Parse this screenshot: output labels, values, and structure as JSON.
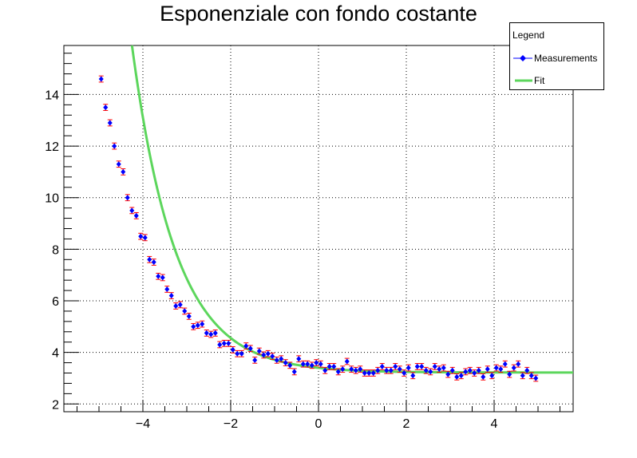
{
  "chart_data": {
    "type": "scatter",
    "title": "Esponenziale con fondo costante",
    "xlabel": "",
    "ylabel": "",
    "xlim": [
      -5.8,
      5.8
    ],
    "ylim": [
      1.7,
      15.9
    ],
    "x_ticks": [
      -4,
      -2,
      0,
      2,
      4
    ],
    "x_tick_labels": [
      "−4",
      "−2",
      "0",
      "2",
      "4"
    ],
    "y_ticks": [
      2,
      4,
      6,
      8,
      10,
      12,
      14
    ],
    "y_tick_labels": [
      "2",
      "4",
      "6",
      "8",
      "10",
      "12",
      "14"
    ],
    "grid": true,
    "legend": {
      "title": "Legend",
      "placement": "top-right",
      "entries": [
        "Measurements",
        "Fit"
      ]
    },
    "series": [
      {
        "name": "Measurements",
        "kind": "points_with_errors",
        "color": "#0000ff",
        "error_color": "#ff0000",
        "error": 0.12,
        "points": [
          [
            -4.95,
            14.6
          ],
          [
            -4.85,
            13.5
          ],
          [
            -4.75,
            12.9
          ],
          [
            -4.65,
            12.0
          ],
          [
            -4.55,
            11.3
          ],
          [
            -4.45,
            11.0
          ],
          [
            -4.35,
            10.0
          ],
          [
            -4.25,
            9.5
          ],
          [
            -4.15,
            9.3
          ],
          [
            -4.05,
            8.5
          ],
          [
            -3.95,
            8.45
          ],
          [
            -3.85,
            7.6
          ],
          [
            -3.75,
            7.5
          ],
          [
            -3.65,
            6.95
          ],
          [
            -3.55,
            6.9
          ],
          [
            -3.45,
            6.45
          ],
          [
            -3.35,
            6.2
          ],
          [
            -3.25,
            5.8
          ],
          [
            -3.15,
            5.85
          ],
          [
            -3.05,
            5.6
          ],
          [
            -2.95,
            5.4
          ],
          [
            -2.85,
            5.0
          ],
          [
            -2.75,
            5.05
          ],
          [
            -2.65,
            5.1
          ],
          [
            -2.55,
            4.75
          ],
          [
            -2.45,
            4.7
          ],
          [
            -2.35,
            4.75
          ],
          [
            -2.25,
            4.3
          ],
          [
            -2.15,
            4.35
          ],
          [
            -2.05,
            4.35
          ],
          [
            -1.95,
            4.1
          ],
          [
            -1.85,
            3.95
          ],
          [
            -1.75,
            3.95
          ],
          [
            -1.65,
            4.25
          ],
          [
            -1.55,
            4.15
          ],
          [
            -1.45,
            3.7
          ],
          [
            -1.35,
            4.05
          ],
          [
            -1.25,
            3.9
          ],
          [
            -1.15,
            3.95
          ],
          [
            -1.05,
            3.85
          ],
          [
            -0.95,
            3.7
          ],
          [
            -0.85,
            3.75
          ],
          [
            -0.75,
            3.6
          ],
          [
            -0.65,
            3.5
          ],
          [
            -0.55,
            3.25
          ],
          [
            -0.45,
            3.75
          ],
          [
            -0.35,
            3.55
          ],
          [
            -0.25,
            3.55
          ],
          [
            -0.15,
            3.5
          ],
          [
            -0.05,
            3.6
          ],
          [
            0.05,
            3.55
          ],
          [
            0.15,
            3.3
          ],
          [
            0.25,
            3.45
          ],
          [
            0.35,
            3.45
          ],
          [
            0.45,
            3.25
          ],
          [
            0.55,
            3.35
          ],
          [
            0.65,
            3.65
          ],
          [
            0.75,
            3.35
          ],
          [
            0.85,
            3.3
          ],
          [
            0.95,
            3.35
          ],
          [
            1.05,
            3.2
          ],
          [
            1.15,
            3.2
          ],
          [
            1.25,
            3.2
          ],
          [
            1.35,
            3.3
          ],
          [
            1.45,
            3.45
          ],
          [
            1.55,
            3.3
          ],
          [
            1.65,
            3.3
          ],
          [
            1.75,
            3.45
          ],
          [
            1.85,
            3.35
          ],
          [
            1.95,
            3.2
          ],
          [
            2.05,
            3.4
          ],
          [
            2.15,
            3.1
          ],
          [
            2.25,
            3.45
          ],
          [
            2.35,
            3.45
          ],
          [
            2.45,
            3.3
          ],
          [
            2.55,
            3.25
          ],
          [
            2.65,
            3.45
          ],
          [
            2.75,
            3.35
          ],
          [
            2.85,
            3.4
          ],
          [
            2.95,
            3.15
          ],
          [
            3.05,
            3.3
          ],
          [
            3.15,
            3.05
          ],
          [
            3.25,
            3.1
          ],
          [
            3.35,
            3.25
          ],
          [
            3.45,
            3.3
          ],
          [
            3.55,
            3.2
          ],
          [
            3.65,
            3.3
          ],
          [
            3.75,
            3.05
          ],
          [
            3.85,
            3.35
          ],
          [
            3.95,
            3.1
          ],
          [
            4.05,
            3.4
          ],
          [
            4.15,
            3.35
          ],
          [
            4.25,
            3.55
          ],
          [
            4.35,
            3.15
          ],
          [
            4.45,
            3.4
          ],
          [
            4.55,
            3.55
          ],
          [
            4.65,
            3.1
          ],
          [
            4.75,
            3.3
          ],
          [
            4.85,
            3.1
          ],
          [
            4.95,
            3.0
          ]
        ]
      },
      {
        "name": "Fit",
        "kind": "line",
        "color": "#5cd65c",
        "model": {
          "amplitude": 9.89,
          "rate": 1.0,
          "offset": 3.22,
          "x_from": -5.05,
          "x_to": 5.8
        }
      }
    ]
  }
}
